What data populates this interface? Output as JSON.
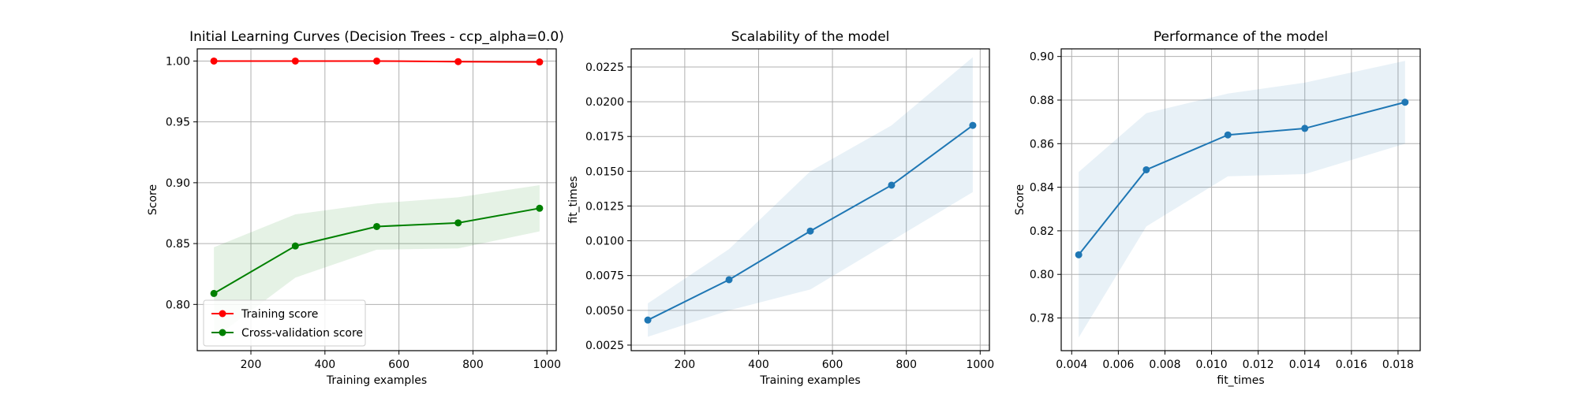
{
  "chart_data": [
    {
      "type": "line",
      "title": "Initial Learning Curves (Decision Trees - ccp_alpha=0.0)",
      "xlabel": "Training examples",
      "ylabel": "Score",
      "xlim": [
        55,
        1025
      ],
      "ylim": [
        0.762,
        1.01
      ],
      "xticks": [
        200,
        400,
        600,
        800,
        1000
      ],
      "yticks": [
        0.8,
        0.85,
        0.9,
        0.95,
        1.0
      ],
      "xtick_labels": [
        "200",
        "400",
        "600",
        "800",
        "1000"
      ],
      "ytick_labels": [
        "0.80",
        "0.85",
        "0.90",
        "0.95",
        "1.00"
      ],
      "grid": true,
      "legend_position": "lower-left",
      "x": [
        100,
        320,
        540,
        760,
        980
      ],
      "series": [
        {
          "name": "Training score",
          "color": "#ff0000",
          "values": [
            1.0,
            1.0,
            1.0,
            0.9995,
            0.9992
          ],
          "band_low": [
            1.0,
            1.0,
            1.0,
            0.9992,
            0.999
          ],
          "band_high": [
            1.0,
            1.0,
            1.0,
            0.9998,
            0.9994
          ],
          "band_color": "#ff0000"
        },
        {
          "name": "Cross-validation score",
          "color": "#008000",
          "values": [
            0.809,
            0.848,
            0.864,
            0.867,
            0.879
          ],
          "band_low": [
            0.772,
            0.822,
            0.845,
            0.846,
            0.86
          ],
          "band_high": [
            0.847,
            0.874,
            0.883,
            0.888,
            0.898
          ],
          "band_color": "#008000"
        }
      ]
    },
    {
      "type": "line",
      "title": "Scalability of the model",
      "xlabel": "Training examples",
      "ylabel": "fit_times",
      "xlim": [
        55,
        1025
      ],
      "ylim": [
        0.0021,
        0.0238
      ],
      "xticks": [
        200,
        400,
        600,
        800,
        1000
      ],
      "yticks": [
        0.0025,
        0.005,
        0.0075,
        0.01,
        0.0125,
        0.015,
        0.0175,
        0.02,
        0.0225
      ],
      "xtick_labels": [
        "200",
        "400",
        "600",
        "800",
        "1000"
      ],
      "ytick_labels": [
        "0.0025",
        "0.0050",
        "0.0075",
        "0.0100",
        "0.0125",
        "0.0150",
        "0.0175",
        "0.0200",
        "0.0225"
      ],
      "grid": true,
      "x": [
        100,
        320,
        540,
        760,
        980
      ],
      "series": [
        {
          "color": "#1f77b4",
          "values": [
            0.0043,
            0.0072,
            0.0107,
            0.014,
            0.0183
          ],
          "band_low": [
            0.0031,
            0.005,
            0.0065,
            0.01,
            0.0135
          ],
          "band_high": [
            0.0055,
            0.0094,
            0.015,
            0.0183,
            0.0232
          ],
          "band_color": "#1f77b4"
        }
      ]
    },
    {
      "type": "line",
      "title": "Performance of the model",
      "xlabel": "fit_times",
      "ylabel": "Score",
      "xlim": [
        0.00355,
        0.01895
      ],
      "ylim": [
        0.765,
        0.9035
      ],
      "xticks": [
        0.004,
        0.006,
        0.008,
        0.01,
        0.012,
        0.014,
        0.016,
        0.018
      ],
      "yticks": [
        0.78,
        0.8,
        0.82,
        0.84,
        0.86,
        0.88,
        0.9
      ],
      "xtick_labels": [
        "0.004",
        "0.006",
        "0.008",
        "0.010",
        "0.012",
        "0.014",
        "0.016",
        "0.018"
      ],
      "ytick_labels": [
        "0.78",
        "0.80",
        "0.82",
        "0.84",
        "0.86",
        "0.88",
        "0.90"
      ],
      "grid": true,
      "x": [
        0.0043,
        0.0072,
        0.0107,
        0.014,
        0.0183
      ],
      "series": [
        {
          "color": "#1f77b4",
          "values": [
            0.809,
            0.848,
            0.864,
            0.867,
            0.879
          ],
          "band_low": [
            0.771,
            0.822,
            0.845,
            0.846,
            0.86
          ],
          "band_high": [
            0.847,
            0.874,
            0.883,
            0.888,
            0.898
          ],
          "band_color": "#1f77b4"
        }
      ]
    }
  ]
}
